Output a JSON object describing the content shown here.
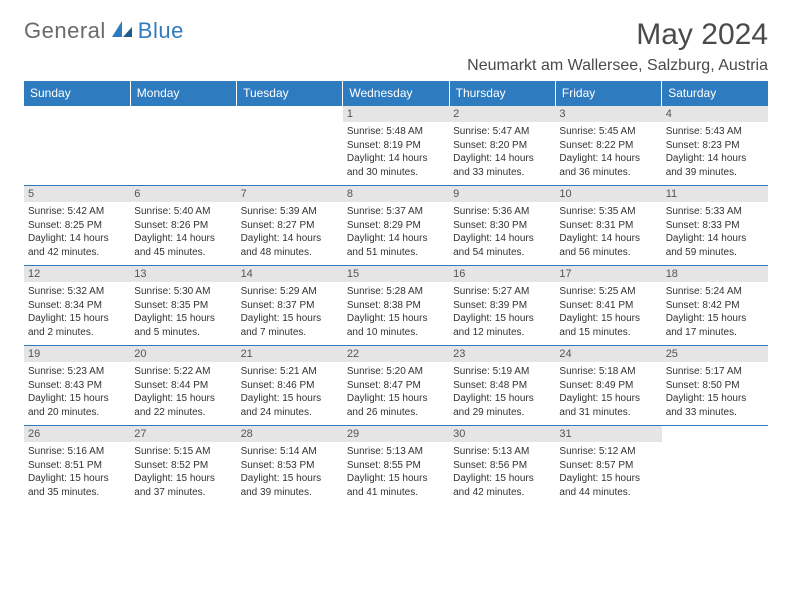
{
  "brand": {
    "left": "General",
    "right": "Blue"
  },
  "monthTitle": "May 2024",
  "location": "Neumarkt am Wallersee, Salzburg, Austria",
  "style": {
    "headerBg": "#2f7bbf",
    "headerText": "#ffffff",
    "dayNumBg": "#e5e5e5",
    "dayNumText": "#555555",
    "weekBorder": "#2f7bbf",
    "brandLeftColor": "#6a6a6a",
    "brandRightColor": "#2f7bbf",
    "bodyTextColor": "#333333",
    "fontFamily": "Arial, Helvetica, sans-serif",
    "pageWidth": 792,
    "pageHeight": 612
  },
  "dayHeaders": [
    "Sunday",
    "Monday",
    "Tuesday",
    "Wednesday",
    "Thursday",
    "Friday",
    "Saturday"
  ],
  "weeks": [
    [
      {
        "empty": true
      },
      {
        "empty": true
      },
      {
        "empty": true
      },
      {
        "day": "1",
        "sunrise": "5:48 AM",
        "sunset": "8:19 PM",
        "daylight": "14 hours and 30 minutes."
      },
      {
        "day": "2",
        "sunrise": "5:47 AM",
        "sunset": "8:20 PM",
        "daylight": "14 hours and 33 minutes."
      },
      {
        "day": "3",
        "sunrise": "5:45 AM",
        "sunset": "8:22 PM",
        "daylight": "14 hours and 36 minutes."
      },
      {
        "day": "4",
        "sunrise": "5:43 AM",
        "sunset": "8:23 PM",
        "daylight": "14 hours and 39 minutes."
      }
    ],
    [
      {
        "day": "5",
        "sunrise": "5:42 AM",
        "sunset": "8:25 PM",
        "daylight": "14 hours and 42 minutes."
      },
      {
        "day": "6",
        "sunrise": "5:40 AM",
        "sunset": "8:26 PM",
        "daylight": "14 hours and 45 minutes."
      },
      {
        "day": "7",
        "sunrise": "5:39 AM",
        "sunset": "8:27 PM",
        "daylight": "14 hours and 48 minutes."
      },
      {
        "day": "8",
        "sunrise": "5:37 AM",
        "sunset": "8:29 PM",
        "daylight": "14 hours and 51 minutes."
      },
      {
        "day": "9",
        "sunrise": "5:36 AM",
        "sunset": "8:30 PM",
        "daylight": "14 hours and 54 minutes."
      },
      {
        "day": "10",
        "sunrise": "5:35 AM",
        "sunset": "8:31 PM",
        "daylight": "14 hours and 56 minutes."
      },
      {
        "day": "11",
        "sunrise": "5:33 AM",
        "sunset": "8:33 PM",
        "daylight": "14 hours and 59 minutes."
      }
    ],
    [
      {
        "day": "12",
        "sunrise": "5:32 AM",
        "sunset": "8:34 PM",
        "daylight": "15 hours and 2 minutes."
      },
      {
        "day": "13",
        "sunrise": "5:30 AM",
        "sunset": "8:35 PM",
        "daylight": "15 hours and 5 minutes."
      },
      {
        "day": "14",
        "sunrise": "5:29 AM",
        "sunset": "8:37 PM",
        "daylight": "15 hours and 7 minutes."
      },
      {
        "day": "15",
        "sunrise": "5:28 AM",
        "sunset": "8:38 PM",
        "daylight": "15 hours and 10 minutes."
      },
      {
        "day": "16",
        "sunrise": "5:27 AM",
        "sunset": "8:39 PM",
        "daylight": "15 hours and 12 minutes."
      },
      {
        "day": "17",
        "sunrise": "5:25 AM",
        "sunset": "8:41 PM",
        "daylight": "15 hours and 15 minutes."
      },
      {
        "day": "18",
        "sunrise": "5:24 AM",
        "sunset": "8:42 PM",
        "daylight": "15 hours and 17 minutes."
      }
    ],
    [
      {
        "day": "19",
        "sunrise": "5:23 AM",
        "sunset": "8:43 PM",
        "daylight": "15 hours and 20 minutes."
      },
      {
        "day": "20",
        "sunrise": "5:22 AM",
        "sunset": "8:44 PM",
        "daylight": "15 hours and 22 minutes."
      },
      {
        "day": "21",
        "sunrise": "5:21 AM",
        "sunset": "8:46 PM",
        "daylight": "15 hours and 24 minutes."
      },
      {
        "day": "22",
        "sunrise": "5:20 AM",
        "sunset": "8:47 PM",
        "daylight": "15 hours and 26 minutes."
      },
      {
        "day": "23",
        "sunrise": "5:19 AM",
        "sunset": "8:48 PM",
        "daylight": "15 hours and 29 minutes."
      },
      {
        "day": "24",
        "sunrise": "5:18 AM",
        "sunset": "8:49 PM",
        "daylight": "15 hours and 31 minutes."
      },
      {
        "day": "25",
        "sunrise": "5:17 AM",
        "sunset": "8:50 PM",
        "daylight": "15 hours and 33 minutes."
      }
    ],
    [
      {
        "day": "26",
        "sunrise": "5:16 AM",
        "sunset": "8:51 PM",
        "daylight": "15 hours and 35 minutes."
      },
      {
        "day": "27",
        "sunrise": "5:15 AM",
        "sunset": "8:52 PM",
        "daylight": "15 hours and 37 minutes."
      },
      {
        "day": "28",
        "sunrise": "5:14 AM",
        "sunset": "8:53 PM",
        "daylight": "15 hours and 39 minutes."
      },
      {
        "day": "29",
        "sunrise": "5:13 AM",
        "sunset": "8:55 PM",
        "daylight": "15 hours and 41 minutes."
      },
      {
        "day": "30",
        "sunrise": "5:13 AM",
        "sunset": "8:56 PM",
        "daylight": "15 hours and 42 minutes."
      },
      {
        "day": "31",
        "sunrise": "5:12 AM",
        "sunset": "8:57 PM",
        "daylight": "15 hours and 44 minutes."
      },
      {
        "empty": true
      }
    ]
  ],
  "labels": {
    "sunrisePrefix": "Sunrise: ",
    "sunsetPrefix": "Sunset: ",
    "daylightPrefix": "Daylight: "
  }
}
